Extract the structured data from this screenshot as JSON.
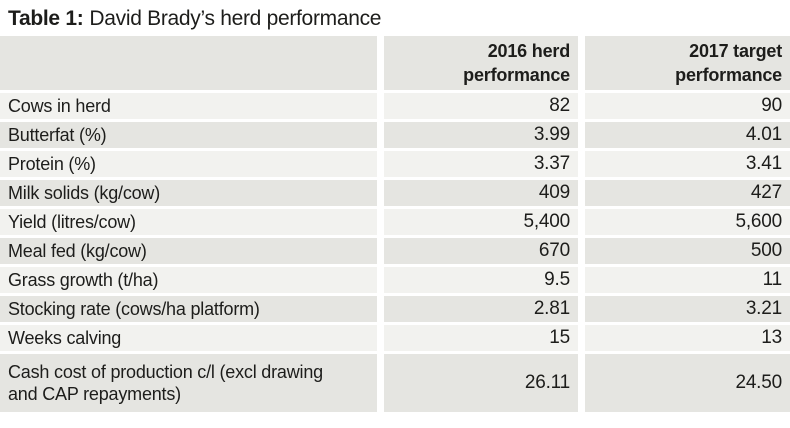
{
  "title": {
    "prefix": "Table 1:",
    "text": "David Brady’s herd performance"
  },
  "table": {
    "header": {
      "label": "",
      "col2016": "2016 herd performance",
      "col2017": "2017 target performance"
    },
    "rows": [
      {
        "label": "Cows in herd",
        "v2016": "82",
        "v2017": "90"
      },
      {
        "label": "Butterfat (%)",
        "v2016": "3.99",
        "v2017": "4.01"
      },
      {
        "label": "Protein (%)",
        "v2016": "3.37",
        "v2017": "3.41"
      },
      {
        "label": "Milk solids (kg/cow)",
        "v2016": "409",
        "v2017": "427"
      },
      {
        "label": "Yield (litres/cow)",
        "v2016": "5,400",
        "v2017": "5,600"
      },
      {
        "label": "Meal fed (kg/cow)",
        "v2016": "670",
        "v2017": "500"
      },
      {
        "label": "Grass growth (t/ha)",
        "v2016": "9.5",
        "v2017": "11"
      },
      {
        "label": "Stocking rate (cows/ha platform)",
        "v2016": "2.81",
        "v2017": "3.21"
      },
      {
        "label": "Weeks calving",
        "v2016": "15",
        "v2017": "13"
      },
      {
        "label": "Cash cost of production c/l (excl drawing and CAP repayments)",
        "v2016": "26.11",
        "v2017": "24.50"
      }
    ]
  },
  "colors": {
    "row_light": "#f2f2ef",
    "row_dark": "#e5e5e1",
    "text": "#1d1d1b",
    "background": "#ffffff"
  },
  "chart_data": {
    "type": "table",
    "title": "Table 1: David Brady’s herd performance",
    "columns": [
      "",
      "2016 herd performance",
      "2017 target performance"
    ],
    "rows": [
      [
        "Cows in herd",
        82,
        90
      ],
      [
        "Butterfat (%)",
        3.99,
        4.01
      ],
      [
        "Protein (%)",
        3.37,
        3.41
      ],
      [
        "Milk solids (kg/cow)",
        409,
        427
      ],
      [
        "Yield (litres/cow)",
        5400,
        5600
      ],
      [
        "Meal fed (kg/cow)",
        670,
        500
      ],
      [
        "Grass growth (t/ha)",
        9.5,
        11
      ],
      [
        "Stocking rate (cows/ha platform)",
        2.81,
        3.21
      ],
      [
        "Weeks calving",
        15,
        13
      ],
      [
        "Cash cost of production c/l (excl drawing and CAP repayments)",
        26.11,
        24.5
      ]
    ]
  }
}
